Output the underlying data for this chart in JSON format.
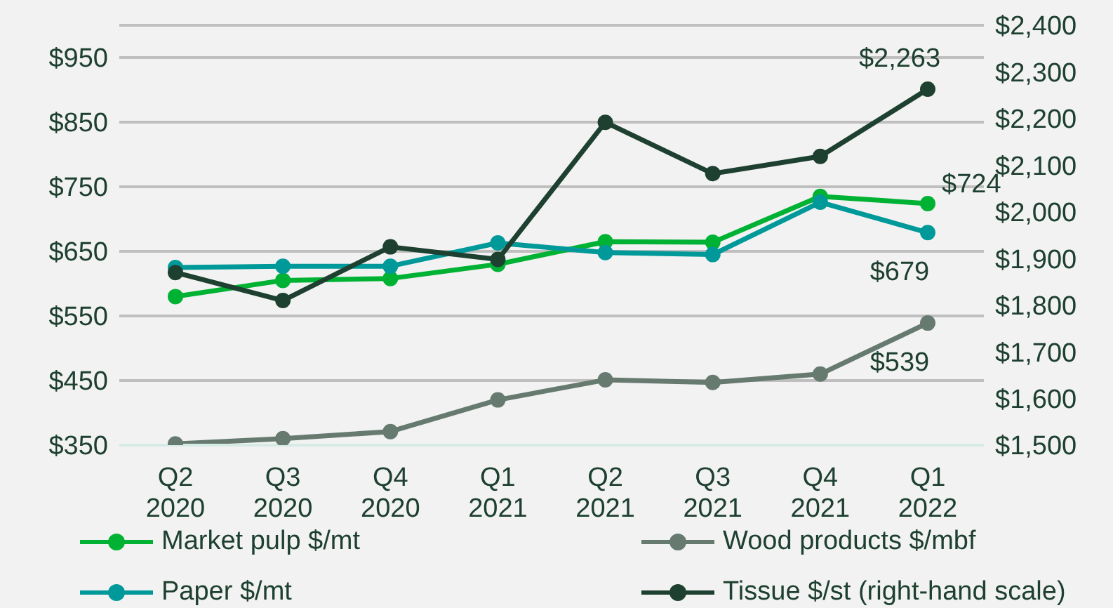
{
  "chart_data": {
    "type": "line",
    "categories": [
      "Q2 2020",
      "Q3 2020",
      "Q4 2020",
      "Q1 2021",
      "Q2 2021",
      "Q3 2021",
      "Q4 2021",
      "Q1 2022"
    ],
    "series": [
      {
        "name": "Market pulp $/mt",
        "color": "#00b233",
        "values": [
          580,
          605,
          608,
          630,
          665,
          664,
          735,
          724
        ],
        "value_labels": [
          null,
          null,
          null,
          null,
          null,
          null,
          null,
          "$724"
        ]
      },
      {
        "name": "Wood products $/mbf",
        "color": "#667a70",
        "values": [
          352,
          360,
          371,
          420,
          451,
          447,
          460,
          539
        ],
        "value_labels": [
          null,
          null,
          null,
          null,
          null,
          null,
          null,
          "$539"
        ]
      },
      {
        "name": "Paper $/mt",
        "color": "#009999",
        "values": [
          625,
          627,
          627,
          663,
          648,
          645,
          726,
          679
        ],
        "value_labels": [
          null,
          null,
          null,
          null,
          null,
          null,
          null,
          "$679"
        ]
      },
      {
        "name": "Tissue $/st (right-hand scale)",
        "color": "#1e4030",
        "axis": "y2",
        "values": [
          1870,
          1810,
          1925,
          1898,
          2192,
          2082,
          2119,
          2263
        ],
        "value_labels": [
          null,
          null,
          null,
          null,
          null,
          null,
          null,
          "$2,263"
        ]
      }
    ],
    "ylim": [
      350,
      1000
    ],
    "yticks": [
      {
        "value": 350,
        "label": "$350"
      },
      {
        "value": 450,
        "label": "$450"
      },
      {
        "value": 550,
        "label": "$550"
      },
      {
        "value": 650,
        "label": "$650"
      },
      {
        "value": 750,
        "label": "$750"
      },
      {
        "value": 850,
        "label": "$850"
      },
      {
        "value": 950,
        "label": "$950"
      }
    ],
    "y2lim": [
      1500,
      2400
    ],
    "y2ticks": [
      {
        "value": 1500,
        "label": "$1,500"
      },
      {
        "value": 1600,
        "label": "$1,600"
      },
      {
        "value": 1700,
        "label": "$1,700"
      },
      {
        "value": 1800,
        "label": "$1,800"
      },
      {
        "value": 1900,
        "label": "$1,900"
      },
      {
        "value": 2000,
        "label": "$2,000"
      },
      {
        "value": 2100,
        "label": "$2,100"
      },
      {
        "value": 2200,
        "label": "$2,200"
      },
      {
        "value": 2300,
        "label": "$2,300"
      },
      {
        "value": 2400,
        "label": "$2,400"
      }
    ],
    "grid": "y",
    "legend": "bottom",
    "marker": "circle",
    "line_style": "solid"
  }
}
